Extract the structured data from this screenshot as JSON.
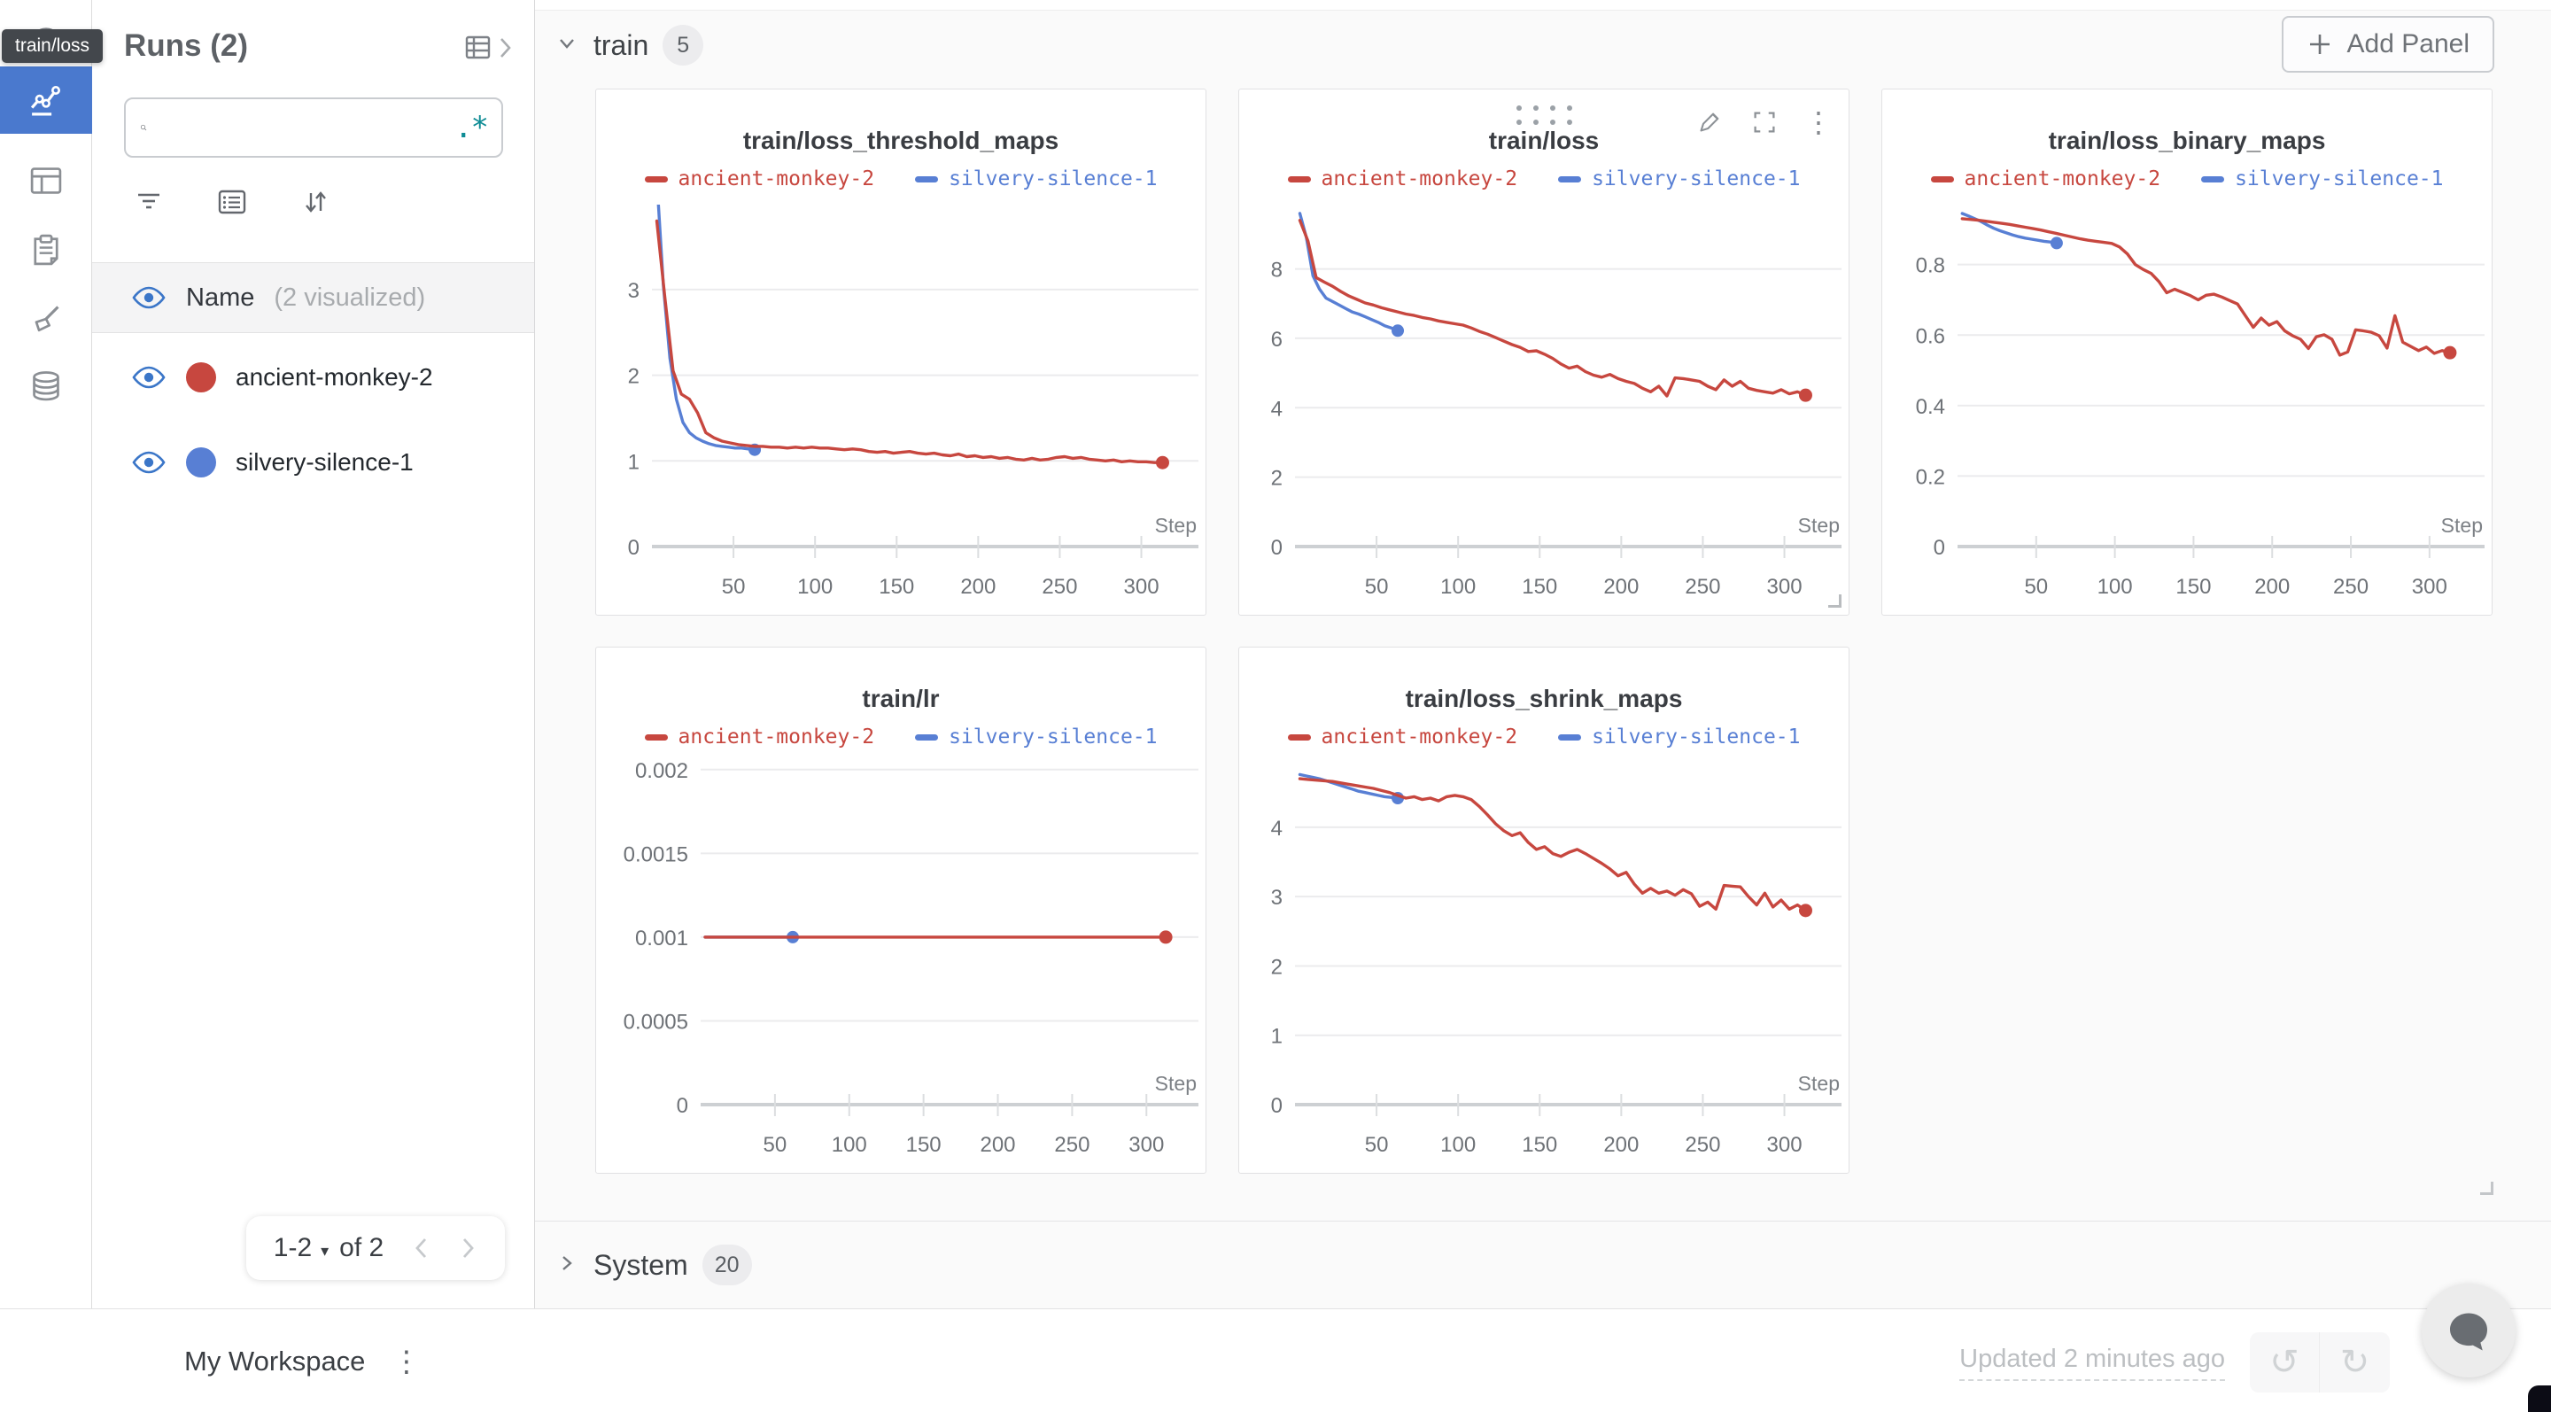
{
  "tooltip": {
    "text": "train/loss"
  },
  "nav_rail": {
    "icons": [
      "info-icon",
      "line-chart-icon",
      "panels-table-icon",
      "clipboard-icon",
      "sweep-brush-icon",
      "database-icon"
    ],
    "selected_index": 1,
    "selected_color": "#4A79CE"
  },
  "runs_panel": {
    "title": "Runs (2)",
    "search": {
      "placeholder": "",
      "regex_icon": ".*"
    },
    "name_header": {
      "label": "Name",
      "sub": "(2 visualized)"
    },
    "runs": [
      {
        "name": "ancient-monkey-2",
        "color": "#C7473F"
      },
      {
        "name": "silvery-silence-1",
        "color": "#587FD4"
      }
    ],
    "pagination": {
      "range": "1-2",
      "of_label": "of 2"
    }
  },
  "main": {
    "train_section": {
      "label": "train",
      "count": "5"
    },
    "system_section": {
      "label": "System",
      "count": "20"
    },
    "add_panel_label": "Add Panel"
  },
  "footer": {
    "workspace_label": "My Workspace",
    "updated_label": "Updated 2 minutes ago"
  },
  "chart_data": [
    {
      "type": "line",
      "title": "train/loss_threshold_maps",
      "xlabel": "Step",
      "xlim": [
        0,
        335
      ],
      "xticks": [
        50,
        100,
        150,
        200,
        250,
        300
      ],
      "ylim": [
        0,
        3.95
      ],
      "yticks": [
        {
          "label": "3",
          "v": 3
        },
        {
          "label": "2",
          "v": 2
        },
        {
          "label": "1",
          "v": 1
        },
        {
          "label": "0",
          "v": 0
        }
      ],
      "grid": true,
      "legend_position": "top",
      "hover_icons": false,
      "resize_handle": false,
      "series": [
        {
          "name": "ancient-monkey-2",
          "color": "#C7473F",
          "x0": 3,
          "dx": 5,
          "values": [
            3.8,
            2.9,
            2.05,
            1.78,
            1.72,
            1.56,
            1.33,
            1.27,
            1.23,
            1.21,
            1.19,
            1.18,
            1.17,
            1.17,
            1.16,
            1.16,
            1.15,
            1.16,
            1.15,
            1.16,
            1.15,
            1.15,
            1.14,
            1.13,
            1.14,
            1.13,
            1.11,
            1.1,
            1.11,
            1.09,
            1.1,
            1.11,
            1.09,
            1.08,
            1.09,
            1.07,
            1.06,
            1.08,
            1.05,
            1.06,
            1.04,
            1.05,
            1.03,
            1.04,
            1.02,
            1.01,
            1.03,
            1.01,
            1.02,
            1.04,
            1.05,
            1.03,
            1.04,
            1.02,
            1.01,
            1.0,
            1.01,
            0.99,
            1.0,
            0.99,
            0.99,
            0.98,
            0.98
          ]
        },
        {
          "name": "silvery-silence-1",
          "color": "#587FD4",
          "x0": 3,
          "dx": 4,
          "values": [
            4.3,
            3.05,
            2.2,
            1.72,
            1.45,
            1.33,
            1.27,
            1.23,
            1.2,
            1.18,
            1.17,
            1.16,
            1.15,
            1.15,
            1.14,
            1.13
          ]
        }
      ]
    },
    {
      "type": "line",
      "title": "train/loss",
      "xlabel": "Step",
      "xlim": [
        0,
        335
      ],
      "xticks": [
        50,
        100,
        150,
        200,
        250,
        300
      ],
      "ylim": [
        0,
        9.75
      ],
      "yticks": [
        {
          "label": "8",
          "v": 8
        },
        {
          "label": "6",
          "v": 6
        },
        {
          "label": "4",
          "v": 4
        },
        {
          "label": "2",
          "v": 2
        },
        {
          "label": "0",
          "v": 0
        }
      ],
      "grid": true,
      "legend_position": "top",
      "hover_icons": true,
      "resize_handle": true,
      "series": [
        {
          "name": "ancient-monkey-2",
          "color": "#C7473F",
          "x0": 3,
          "dx": 5,
          "values": [
            9.4,
            8.8,
            7.75,
            7.62,
            7.5,
            7.35,
            7.22,
            7.12,
            7.02,
            6.96,
            6.88,
            6.82,
            6.76,
            6.7,
            6.66,
            6.6,
            6.56,
            6.5,
            6.46,
            6.42,
            6.38,
            6.3,
            6.2,
            6.12,
            6.02,
            5.92,
            5.82,
            5.74,
            5.62,
            5.64,
            5.54,
            5.42,
            5.26,
            5.14,
            5.2,
            5.04,
            4.94,
            4.88,
            4.96,
            4.84,
            4.76,
            4.7,
            4.56,
            4.46,
            4.62,
            4.34,
            4.86,
            4.84,
            4.8,
            4.76,
            4.62,
            4.52,
            4.8,
            4.62,
            4.76,
            4.56,
            4.5,
            4.46,
            4.42,
            4.52,
            4.4,
            4.46,
            4.36
          ]
        },
        {
          "name": "silvery-silence-1",
          "color": "#587FD4",
          "x0": 3,
          "dx": 4,
          "values": [
            9.6,
            8.9,
            7.8,
            7.42,
            7.16,
            7.06,
            6.96,
            6.86,
            6.76,
            6.7,
            6.62,
            6.54,
            6.46,
            6.36,
            6.3,
            6.22
          ]
        }
      ]
    },
    {
      "type": "line",
      "title": "train/loss_binary_maps",
      "xlabel": "Step",
      "xlim": [
        0,
        335
      ],
      "xticks": [
        50,
        100,
        150,
        200,
        250,
        300
      ],
      "ylim": [
        0,
        0.96
      ],
      "yticks": [
        {
          "label": "0.8",
          "v": 0.8
        },
        {
          "label": "0.6",
          "v": 0.6
        },
        {
          "label": "0.4",
          "v": 0.4
        },
        {
          "label": "0.2",
          "v": 0.2
        },
        {
          "label": "0",
          "v": 0
        }
      ],
      "grid": true,
      "legend_position": "top",
      "hover_icons": false,
      "resize_handle": false,
      "series": [
        {
          "name": "ancient-monkey-2",
          "color": "#C7473F",
          "x0": 3,
          "dx": 5,
          "values": [
            0.93,
            0.928,
            0.926,
            0.923,
            0.92,
            0.917,
            0.914,
            0.91,
            0.906,
            0.902,
            0.898,
            0.893,
            0.888,
            0.883,
            0.878,
            0.873,
            0.869,
            0.866,
            0.863,
            0.86,
            0.85,
            0.83,
            0.8,
            0.786,
            0.775,
            0.752,
            0.72,
            0.73,
            0.721,
            0.712,
            0.7,
            0.713,
            0.716,
            0.708,
            0.698,
            0.688,
            0.655,
            0.622,
            0.648,
            0.628,
            0.638,
            0.612,
            0.598,
            0.588,
            0.562,
            0.595,
            0.601,
            0.588,
            0.543,
            0.552,
            0.615,
            0.612,
            0.608,
            0.598,
            0.563,
            0.655,
            0.58,
            0.568,
            0.556,
            0.566,
            0.548,
            0.556,
            0.55
          ]
        },
        {
          "name": "silvery-silence-1",
          "color": "#587FD4",
          "x0": 3,
          "dx": 4,
          "values": [
            0.945,
            0.938,
            0.93,
            0.922,
            0.912,
            0.903,
            0.896,
            0.89,
            0.884,
            0.879,
            0.875,
            0.872,
            0.869,
            0.866,
            0.864,
            0.861
          ]
        }
      ]
    },
    {
      "type": "line",
      "title": "train/lr",
      "xlabel": "Step",
      "xlim": [
        0,
        335
      ],
      "xticks": [
        50,
        100,
        150,
        200,
        250,
        300
      ],
      "ylim": [
        0,
        0.00202
      ],
      "yticks": [
        {
          "label": "0.002",
          "v": 0.002
        },
        {
          "label": "0.0015",
          "v": 0.0015
        },
        {
          "label": "0.001",
          "v": 0.001
        },
        {
          "label": "0.0005",
          "v": 0.0005
        },
        {
          "label": "0",
          "v": 0
        }
      ],
      "grid": true,
      "legend_position": "top",
      "hover_icons": false,
      "resize_handle": false,
      "series": [
        {
          "name": "ancient-monkey-2",
          "color": "#C7473F",
          "x0": 3,
          "dx": 310,
          "values": [
            0.001,
            0.001
          ]
        },
        {
          "name": "silvery-silence-1",
          "color": "#587FD4",
          "x0": 3,
          "dx": 59,
          "values": [
            0.001,
            0.001
          ]
        }
      ]
    },
    {
      "type": "line",
      "title": "train/loss_shrink_maps",
      "xlabel": "Step",
      "xlim": [
        0,
        335
      ],
      "xticks": [
        50,
        100,
        150,
        200,
        250,
        300
      ],
      "ylim": [
        0,
        4.88
      ],
      "yticks": [
        {
          "label": "4",
          "v": 4
        },
        {
          "label": "3",
          "v": 3
        },
        {
          "label": "2",
          "v": 2
        },
        {
          "label": "1",
          "v": 1
        },
        {
          "label": "0",
          "v": 0
        }
      ],
      "grid": true,
      "legend_position": "top",
      "hover_icons": false,
      "resize_handle": false,
      "series": [
        {
          "name": "ancient-monkey-2",
          "color": "#C7473F",
          "x0": 3,
          "dx": 5,
          "values": [
            4.7,
            4.69,
            4.68,
            4.67,
            4.66,
            4.64,
            4.62,
            4.6,
            4.58,
            4.56,
            4.53,
            4.5,
            4.46,
            4.42,
            4.44,
            4.4,
            4.42,
            4.38,
            4.44,
            4.46,
            4.44,
            4.4,
            4.3,
            4.18,
            4.05,
            3.95,
            3.88,
            3.92,
            3.78,
            3.68,
            3.72,
            3.62,
            3.58,
            3.64,
            3.68,
            3.62,
            3.55,
            3.48,
            3.4,
            3.3,
            3.35,
            3.18,
            3.05,
            3.12,
            3.05,
            3.08,
            3.02,
            3.1,
            3.04,
            2.86,
            2.92,
            2.82,
            3.16,
            3.15,
            3.14,
            3.0,
            2.88,
            3.05,
            2.85,
            2.95,
            2.82,
            2.88,
            2.8
          ]
        },
        {
          "name": "silvery-silence-1",
          "color": "#587FD4",
          "x0": 3,
          "dx": 4,
          "values": [
            4.76,
            4.74,
            4.72,
            4.7,
            4.67,
            4.64,
            4.61,
            4.58,
            4.55,
            4.52,
            4.5,
            4.48,
            4.46,
            4.44,
            4.43,
            4.42
          ]
        }
      ]
    }
  ]
}
